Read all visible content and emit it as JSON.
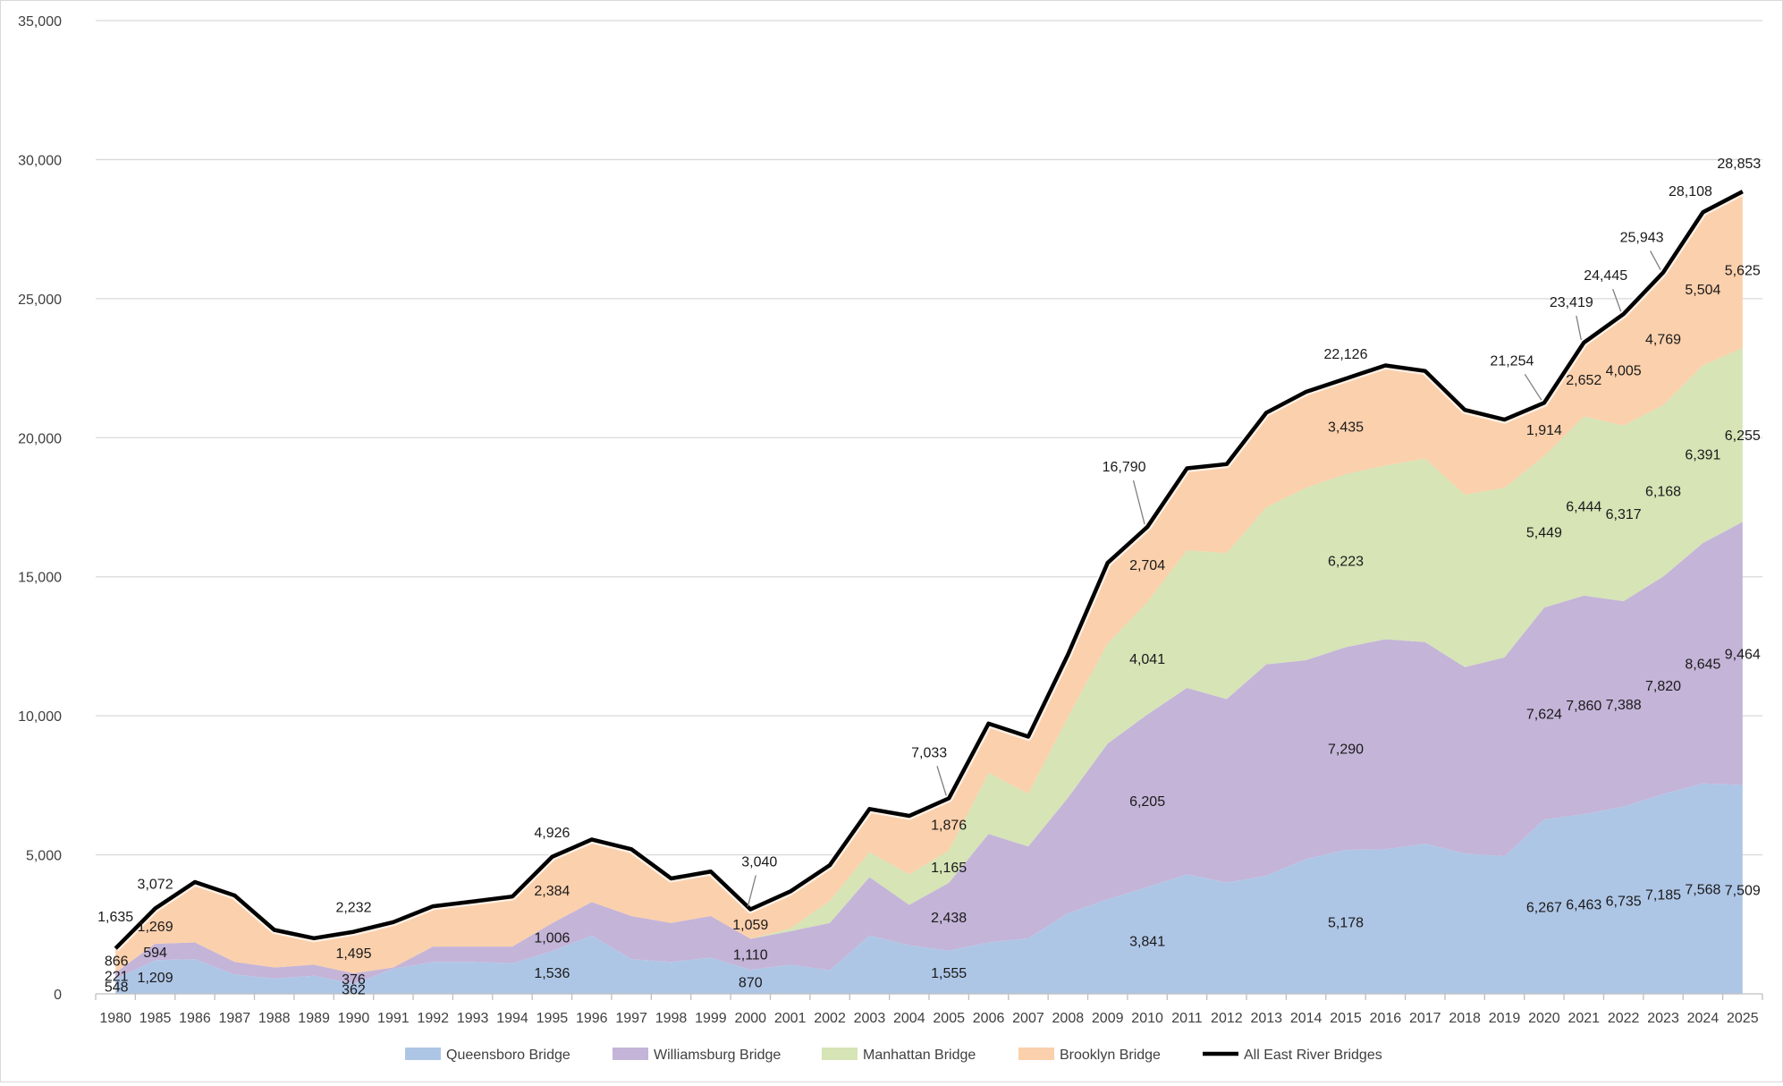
{
  "chart_data": {
    "type": "area",
    "title": "",
    "xlabel": "",
    "ylabel": "",
    "ylim": [
      0,
      35000
    ],
    "y_ticks": [
      "0",
      "5,000",
      "10,000",
      "15,000",
      "20,000",
      "25,000",
      "30,000",
      "35,000"
    ],
    "grid": "horizontal",
    "legend_position": "bottom",
    "categories": [
      "1980",
      "1985",
      "1986",
      "1987",
      "1988",
      "1989",
      "1990",
      "1991",
      "1992",
      "1993",
      "1994",
      "1995",
      "1996",
      "1997",
      "1998",
      "1999",
      "2000",
      "2001",
      "2002",
      "2003",
      "2004",
      "2005",
      "2006",
      "2007",
      "2008",
      "2009",
      "2010",
      "2011",
      "2012",
      "2013",
      "2014",
      "2015",
      "2016",
      "2017",
      "2018",
      "2019",
      "2020",
      "2021",
      "2022",
      "2023",
      "2024",
      "2025"
    ],
    "series": [
      {
        "name": "Queensboro Bridge",
        "kind": "area",
        "color": "#aec6e6",
        "values": [
          548,
          1209,
          1250,
          700,
          550,
          650,
          362,
          900,
          1150,
          1150,
          1100,
          1536,
          2100,
          1250,
          1150,
          1300,
          870,
          1050,
          850,
          2100,
          1750,
          1555,
          1850,
          2000,
          2900,
          3400,
          3841,
          4300,
          4000,
          4250,
          4850,
          5178,
          5200,
          5400,
          5050,
          4950,
          6267,
          6463,
          6735,
          7185,
          7568,
          7509
        ]
      },
      {
        "name": "Williamsburg Bridge",
        "kind": "area",
        "color": "#c4b4d8",
        "values": [
          221,
          594,
          600,
          450,
          400,
          400,
          376,
          50,
          550,
          550,
          600,
          1006,
          1200,
          1550,
          1400,
          1500,
          1110,
          1200,
          1700,
          2100,
          1450,
          2438,
          3900,
          3300,
          4150,
          5600,
          6205,
          6700,
          6600,
          7600,
          7150,
          7290,
          7550,
          7250,
          6700,
          7150,
          7624,
          7860,
          7388,
          7820,
          8645,
          9464
        ]
      },
      {
        "name": "Manhattan Bridge",
        "kind": "area",
        "color": "#d6e4b6",
        "values": [
          0,
          0,
          0,
          0,
          0,
          0,
          0,
          0,
          0,
          0,
          0,
          0,
          0,
          0,
          0,
          0,
          0,
          100,
          800,
          900,
          1100,
          1165,
          2200,
          1900,
          2900,
          3600,
          4041,
          4950,
          5250,
          5650,
          6200,
          6223,
          6250,
          6600,
          6200,
          6100,
          5449,
          6444,
          6317,
          6168,
          6391,
          6255
        ]
      },
      {
        "name": "Brooklyn Bridge",
        "kind": "area",
        "color": "#fbd0ac",
        "values": [
          866,
          1269,
          2170,
          2390,
          1350,
          950,
          1495,
          1630,
          1450,
          1620,
          1800,
          2384,
          2250,
          2400,
          1600,
          1600,
          1059,
          1330,
          1280,
          1550,
          2100,
          1876,
          1770,
          2050,
          2250,
          2900,
          2704,
          2950,
          3200,
          3400,
          3450,
          3435,
          3600,
          3150,
          3050,
          2450,
          1914,
          2652,
          4005,
          4769,
          5504,
          5625
        ]
      },
      {
        "name": "All East River Bridges",
        "kind": "line",
        "color": "#000000",
        "values": [
          1635,
          3072,
          4020,
          3540,
          2300,
          2000,
          2232,
          2580,
          3150,
          3320,
          3500,
          4926,
          5550,
          5200,
          4150,
          4400,
          3040,
          3680,
          4630,
          6650,
          6400,
          7033,
          9720,
          9250,
          12200,
          15500,
          16790,
          18900,
          19050,
          20900,
          21650,
          22126,
          22600,
          22400,
          21000,
          20650,
          21254,
          23419,
          24445,
          25943,
          28108,
          28853
        ]
      }
    ],
    "labels": [
      {
        "series": 0,
        "index": 0,
        "text": "548"
      },
      {
        "series": 0,
        "index": 1,
        "text": "1,209"
      },
      {
        "series": 0,
        "index": 6,
        "text": "362"
      },
      {
        "series": 0,
        "index": 11,
        "text": "1,536"
      },
      {
        "series": 0,
        "index": 16,
        "text": "870"
      },
      {
        "series": 0,
        "index": 21,
        "text": "1,555"
      },
      {
        "series": 0,
        "index": 26,
        "text": "3,841"
      },
      {
        "series": 0,
        "index": 31,
        "text": "5,178"
      },
      {
        "series": 0,
        "index": 36,
        "text": "6,267"
      },
      {
        "series": 0,
        "index": 37,
        "text": "6,463"
      },
      {
        "series": 0,
        "index": 38,
        "text": "6,735"
      },
      {
        "series": 0,
        "index": 39,
        "text": "7,185"
      },
      {
        "series": 0,
        "index": 40,
        "text": "7,568"
      },
      {
        "series": 0,
        "index": 41,
        "text": "7,509"
      },
      {
        "series": 1,
        "index": 0,
        "text": "221"
      },
      {
        "series": 1,
        "index": 1,
        "text": "594"
      },
      {
        "series": 1,
        "index": 6,
        "text": "376"
      },
      {
        "series": 1,
        "index": 11,
        "text": "1,006"
      },
      {
        "series": 1,
        "index": 16,
        "text": "1,110"
      },
      {
        "series": 1,
        "index": 21,
        "text": "2,438"
      },
      {
        "series": 1,
        "index": 26,
        "text": "6,205"
      },
      {
        "series": 1,
        "index": 31,
        "text": "7,290"
      },
      {
        "series": 1,
        "index": 36,
        "text": "7,624"
      },
      {
        "series": 1,
        "index": 37,
        "text": "7,860"
      },
      {
        "series": 1,
        "index": 38,
        "text": "7,388"
      },
      {
        "series": 1,
        "index": 39,
        "text": "7,820"
      },
      {
        "series": 1,
        "index": 40,
        "text": "8,645"
      },
      {
        "series": 1,
        "index": 41,
        "text": "9,464"
      },
      {
        "series": 2,
        "index": 21,
        "text": "1,165"
      },
      {
        "series": 2,
        "index": 26,
        "text": "4,041"
      },
      {
        "series": 2,
        "index": 31,
        "text": "6,223"
      },
      {
        "series": 2,
        "index": 36,
        "text": "5,449"
      },
      {
        "series": 2,
        "index": 37,
        "text": "6,444"
      },
      {
        "series": 2,
        "index": 38,
        "text": "6,317"
      },
      {
        "series": 2,
        "index": 39,
        "text": "6,168"
      },
      {
        "series": 2,
        "index": 40,
        "text": "6,391"
      },
      {
        "series": 2,
        "index": 41,
        "text": "6,255"
      },
      {
        "series": 3,
        "index": 0,
        "text": "866"
      },
      {
        "series": 3,
        "index": 1,
        "text": "1,269"
      },
      {
        "series": 3,
        "index": 6,
        "text": "1,495"
      },
      {
        "series": 3,
        "index": 11,
        "text": "2,384"
      },
      {
        "series": 3,
        "index": 16,
        "text": "1,059"
      },
      {
        "series": 3,
        "index": 21,
        "text": "1,876"
      },
      {
        "series": 3,
        "index": 26,
        "text": "2,704"
      },
      {
        "series": 3,
        "index": 31,
        "text": "3,435"
      },
      {
        "series": 3,
        "index": 36,
        "text": "1,914"
      },
      {
        "series": 3,
        "index": 37,
        "text": "2,652"
      },
      {
        "series": 3,
        "index": 38,
        "text": "4,005"
      },
      {
        "series": 3,
        "index": 39,
        "text": "4,769"
      },
      {
        "series": 3,
        "index": 40,
        "text": "5,504"
      },
      {
        "series": 3,
        "index": 41,
        "text": "5,625"
      },
      {
        "series": 4,
        "index": 0,
        "text": "1,635"
      },
      {
        "series": 4,
        "index": 1,
        "text": "3,072"
      },
      {
        "series": 4,
        "index": 6,
        "text": "2,232"
      },
      {
        "series": 4,
        "index": 11,
        "text": "4,926"
      },
      {
        "series": 4,
        "index": 16,
        "text": "3,040"
      },
      {
        "series": 4,
        "index": 21,
        "text": "7,033"
      },
      {
        "series": 4,
        "index": 26,
        "text": "16,790"
      },
      {
        "series": 4,
        "index": 31,
        "text": "22,126"
      },
      {
        "series": 4,
        "index": 36,
        "text": "21,254"
      },
      {
        "series": 4,
        "index": 37,
        "text": "23,419"
      },
      {
        "series": 4,
        "index": 38,
        "text": "24,445"
      },
      {
        "series": 4,
        "index": 39,
        "text": "25,943"
      },
      {
        "series": 4,
        "index": 40,
        "text": "28,108"
      },
      {
        "series": 4,
        "index": 41,
        "text": "28,853"
      }
    ]
  }
}
